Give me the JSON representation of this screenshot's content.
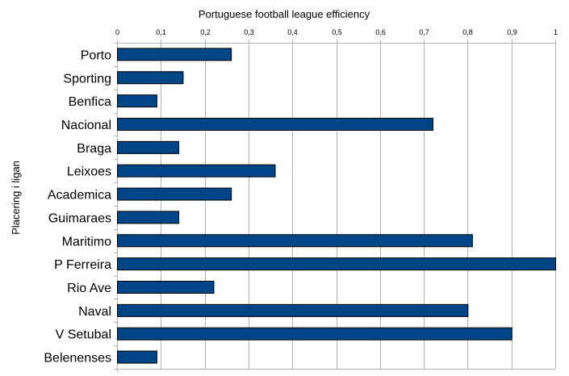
{
  "chart_data": {
    "type": "bar",
    "orientation": "horizontal",
    "title": "Portuguese football league efficiency",
    "xlabel": "",
    "ylabel": "Placering i ligan",
    "xlim": [
      0,
      1
    ],
    "x_axis_position": "top",
    "x_ticks": [
      0,
      0.1,
      0.2,
      0.3,
      0.4,
      0.5,
      0.6,
      0.7,
      0.8,
      0.9,
      1
    ],
    "x_tick_labels": [
      "0",
      "0,1",
      "0,2",
      "0,3",
      "0,4",
      "0,5",
      "0,6",
      "0,7",
      "0,8",
      "0,9",
      "1"
    ],
    "grid": true,
    "legend": "none",
    "categories": [
      "Porto",
      "Sporting",
      "Benfica",
      "Nacional",
      "Braga",
      "Leixoes",
      "Academica",
      "Guimaraes",
      "Maritimo",
      "P Ferreira",
      "Rio Ave",
      "Naval",
      "V Setubal",
      "Belenenses"
    ],
    "values": [
      0.26,
      0.15,
      0.09,
      0.72,
      0.14,
      0.36,
      0.26,
      0.14,
      0.81,
      1.0,
      0.22,
      0.8,
      0.9,
      0.09
    ],
    "bar_color": "#004586"
  }
}
